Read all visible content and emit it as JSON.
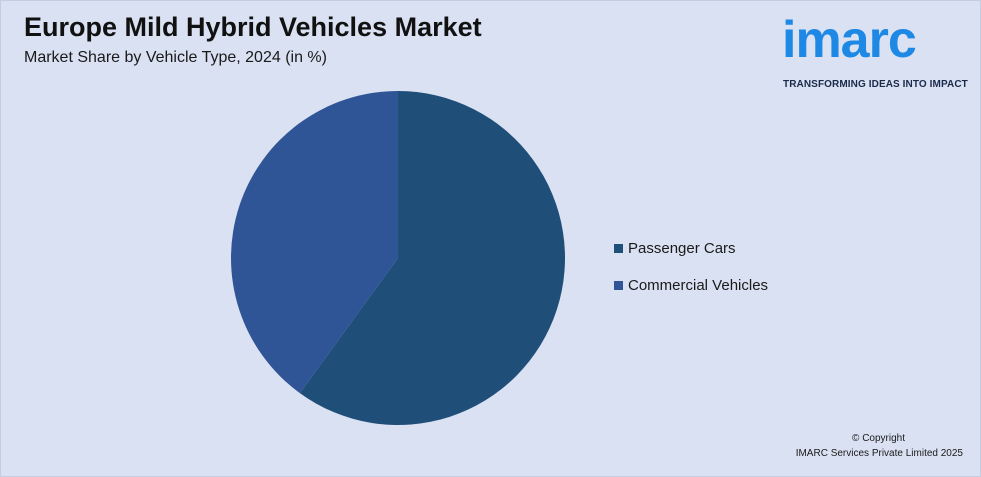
{
  "header": {
    "title": "Europe Mild Hybrid Vehicles Market",
    "subtitle": "Market Share by Vehicle Type, 2024 (in %)"
  },
  "logo": {
    "wordmark": "imarc",
    "tagline": "TRANSFORMING IDEAS INTO IMPACT"
  },
  "footer": {
    "copyright": "© Copyright",
    "company": "IMARC Services Private Limited 2025"
  },
  "chart_data": {
    "type": "pie",
    "title": "Europe Mild Hybrid Vehicles Market",
    "subtitle": "Market Share by Vehicle Type, 2024 (in %)",
    "categories": [
      "Passenger Cars",
      "Commercial Vehicles"
    ],
    "values": [
      60,
      40
    ],
    "colors": [
      "#1f4e79",
      "#2f5597"
    ],
    "legend": "right",
    "start_angle": "top (12 o'clock), clockwise"
  },
  "colors": {
    "background": "#d9e1f2",
    "brand": "#1e88e5"
  }
}
